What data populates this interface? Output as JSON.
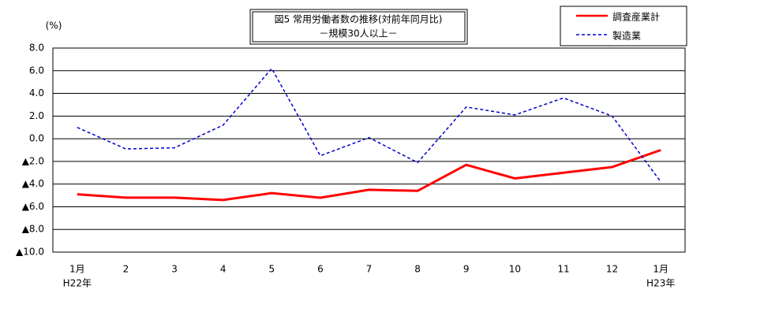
{
  "chart_data": {
    "type": "line",
    "title": "図5 常用労働者数の推移(対前年同月比)",
    "subtitle": "－規模30人以上－",
    "y_label": "(%)",
    "categories": [
      "1月",
      "2",
      "3",
      "4",
      "5",
      "6",
      "7",
      "8",
      "9",
      "10",
      "11",
      "12",
      "1月"
    ],
    "x_sublabels": [
      "H22年",
      null,
      null,
      null,
      null,
      null,
      null,
      null,
      null,
      null,
      null,
      null,
      "H23年"
    ],
    "series": [
      {
        "name": "調査産業計",
        "color": "#ff0000",
        "dash": false,
        "width": 3,
        "values": [
          -4.9,
          -5.2,
          -5.2,
          -5.4,
          -4.8,
          -5.2,
          -4.5,
          -4.6,
          -2.3,
          -3.5,
          -3.0,
          -2.5,
          -1.0
        ]
      },
      {
        "name": "製造業",
        "color": "#0000cc",
        "dash": true,
        "width": 1.5,
        "values": [
          1.0,
          -0.9,
          -0.8,
          1.2,
          6.2,
          -1.5,
          0.1,
          -2.1,
          2.8,
          2.1,
          3.6,
          2.0,
          -3.8
        ]
      }
    ],
    "ylim": [
      -10,
      8
    ],
    "yticks": [
      {
        "value": 8,
        "label": "8.0"
      },
      {
        "value": 6,
        "label": "6.0"
      },
      {
        "value": 4,
        "label": "4.0"
      },
      {
        "value": 2,
        "label": "2.0"
      },
      {
        "value": 0,
        "label": "0.0"
      },
      {
        "value": -2,
        "label": "▲2.0"
      },
      {
        "value": -4,
        "label": "▲4.0"
      },
      {
        "value": -6,
        "label": "▲6.0"
      },
      {
        "value": -8,
        "label": "▲8.0"
      },
      {
        "value": -10,
        "label": "▲10.0"
      }
    ],
    "grid": true,
    "legend": "top-right"
  }
}
